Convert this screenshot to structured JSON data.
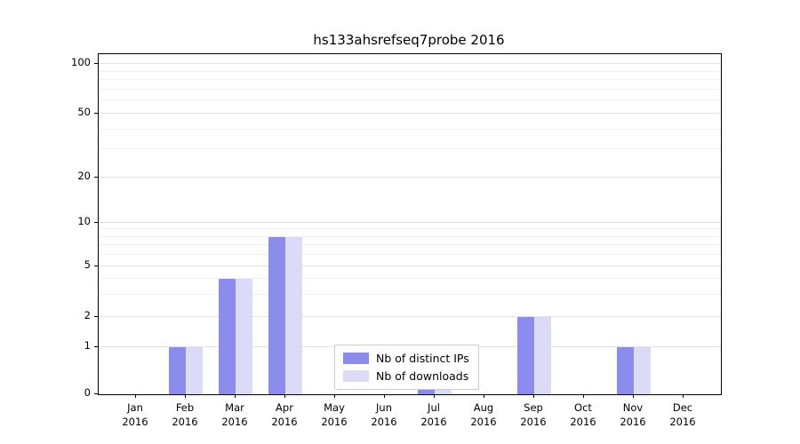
{
  "chart_data": {
    "type": "bar",
    "title": "hs133ahsrefseq7probe 2016",
    "months": [
      "Jan",
      "Feb",
      "Mar",
      "Apr",
      "May",
      "Jun",
      "Jul",
      "Aug",
      "Sep",
      "Oct",
      "Nov",
      "Dec"
    ],
    "year": "2016",
    "categories": [
      "Jan 2016",
      "Feb 2016",
      "Mar 2016",
      "Apr 2016",
      "May 2016",
      "Jun 2016",
      "Jul 2016",
      "Aug 2016",
      "Sep 2016",
      "Oct 2016",
      "Nov 2016",
      "Dec 2016"
    ],
    "series": [
      {
        "name": "Nb of distinct IPs",
        "color": "#8c8cec",
        "values": [
          0,
          1,
          4,
          8,
          0,
          0,
          1,
          0,
          2,
          0,
          1,
          0
        ]
      },
      {
        "name": "Nb of downloads",
        "color": "#dbdbf8",
        "values": [
          0,
          1,
          4,
          8,
          0,
          0,
          1,
          0,
          2,
          0,
          1,
          0
        ]
      }
    ],
    "yscale": "symlog",
    "y_ticks": [
      0,
      1,
      2,
      5,
      10,
      20,
      50,
      100
    ],
    "y_tick_labels": [
      "0",
      "1",
      "2",
      "5",
      "10",
      "20",
      "50",
      "100"
    ],
    "y_minor_ticks": [
      3,
      4,
      6,
      7,
      8,
      9,
      30,
      40,
      60,
      70,
      80,
      90
    ],
    "ylim": [
      0,
      110
    ],
    "grid": true,
    "legend_position": "lower center"
  }
}
